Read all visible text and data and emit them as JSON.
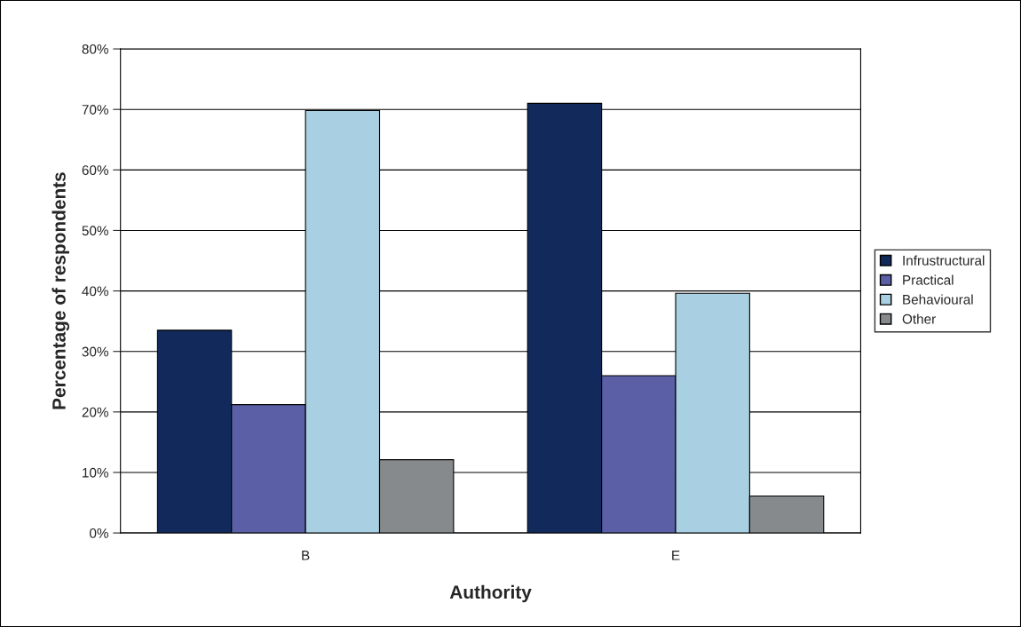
{
  "chart_data": {
    "type": "bar",
    "xlabel": "Authority",
    "ylabel": "Percentage of respondents",
    "categories": [
      "B",
      "E"
    ],
    "series": [
      {
        "name": "Infrustructural",
        "color": "#112a5b",
        "values": [
          33.5,
          71
        ]
      },
      {
        "name": "Practical",
        "color": "#5a5fa6",
        "values": [
          21.2,
          26
        ]
      },
      {
        "name": "Behavioural",
        "color": "#a8d0e2",
        "values": [
          69.8,
          39.6
        ]
      },
      {
        "name": "Other",
        "color": "#878a8c",
        "values": [
          12.1,
          6.1
        ]
      }
    ],
    "ylim": [
      0,
      80
    ],
    "yticks": [
      {
        "value": 0,
        "label": "0%"
      },
      {
        "value": 10,
        "label": "10%"
      },
      {
        "value": 20,
        "label": "20%"
      },
      {
        "value": 30,
        "label": "30%"
      },
      {
        "value": 40,
        "label": "40%"
      },
      {
        "value": 50,
        "label": "50%"
      },
      {
        "value": 60,
        "label": "60%"
      },
      {
        "value": 70,
        "label": "70%"
      },
      {
        "value": 80,
        "label": "80%"
      }
    ],
    "grid": "y",
    "legend": "right"
  }
}
